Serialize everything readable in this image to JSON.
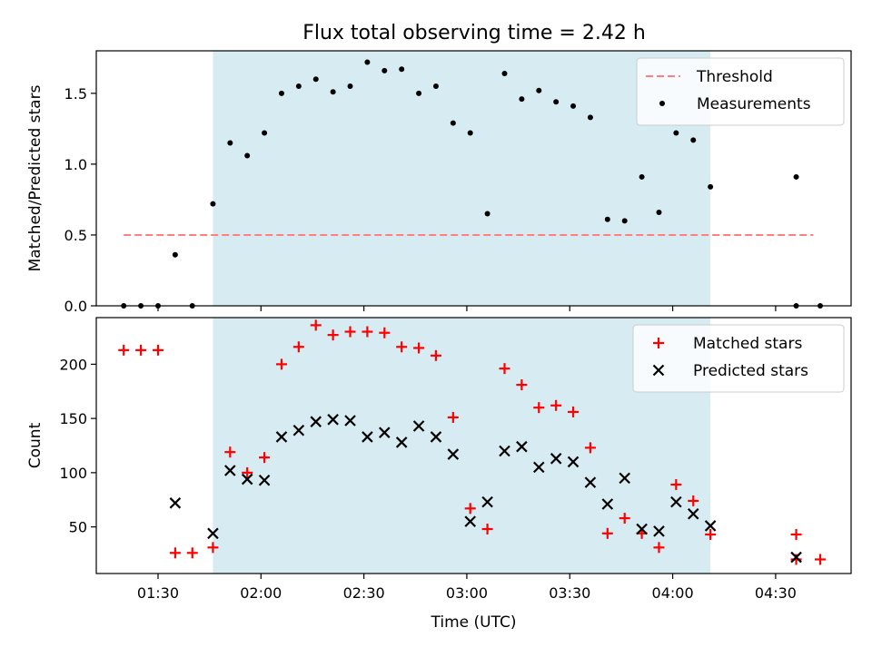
{
  "title": "Flux total observing time = 2.42 h",
  "colors": {
    "shade": "#add8e6",
    "threshold": "#ff7f7f",
    "measurement": "#000000",
    "matched": "#ff0000",
    "predicted": "#000000"
  },
  "chart_data": [
    {
      "type": "scatter",
      "panel": "top",
      "ylabel": "Matched/Predicted stars",
      "xlabel": "",
      "xlim": [
        "01:12",
        "04:52"
      ],
      "ylim": [
        0,
        1.8
      ],
      "yticks": [
        0.0,
        0.5,
        1.0,
        1.5
      ],
      "ytick_labels": [
        "0.0",
        "0.5",
        "1.0",
        "1.5"
      ],
      "shaded_span": [
        "01:46",
        "04:11"
      ],
      "legend": {
        "placement": "upper right",
        "entries": [
          "Threshold",
          "Measurements"
        ]
      },
      "threshold": {
        "name": "Threshold",
        "y": 0.5,
        "x_range": [
          "01:20",
          "04:41"
        ],
        "style": "dashed"
      },
      "series": [
        {
          "name": "Measurements",
          "marker": "dot",
          "points": [
            [
              "01:20",
              0.0
            ],
            [
              "01:25",
              0.0
            ],
            [
              "01:30",
              0.0
            ],
            [
              "01:35",
              0.36
            ],
            [
              "01:40",
              0.0
            ],
            [
              "01:46",
              0.72
            ],
            [
              "01:51",
              1.15
            ],
            [
              "01:56",
              1.06
            ],
            [
              "02:01",
              1.22
            ],
            [
              "02:06",
              1.5
            ],
            [
              "02:11",
              1.55
            ],
            [
              "02:16",
              1.6
            ],
            [
              "02:21",
              1.51
            ],
            [
              "02:26",
              1.55
            ],
            [
              "02:31",
              1.72
            ],
            [
              "02:36",
              1.66
            ],
            [
              "02:41",
              1.67
            ],
            [
              "02:46",
              1.5
            ],
            [
              "02:51",
              1.55
            ],
            [
              "02:56",
              1.29
            ],
            [
              "03:01",
              1.22
            ],
            [
              "03:06",
              0.65
            ],
            [
              "03:11",
              1.64
            ],
            [
              "03:16",
              1.46
            ],
            [
              "03:21",
              1.52
            ],
            [
              "03:26",
              1.44
            ],
            [
              "03:31",
              1.41
            ],
            [
              "03:36",
              1.33
            ],
            [
              "03:41",
              0.61
            ],
            [
              "03:46",
              0.6
            ],
            [
              "03:51",
              0.91
            ],
            [
              "03:56",
              0.66
            ],
            [
              "04:01",
              1.22
            ],
            [
              "04:06",
              1.17
            ],
            [
              "04:11",
              0.84
            ],
            [
              "04:36",
              0.0
            ],
            [
              "04:36",
              0.91
            ],
            [
              "04:43",
              0.0
            ]
          ]
        }
      ]
    },
    {
      "type": "scatter",
      "panel": "bottom",
      "ylabel": "Count",
      "xlabel": "Time (UTC)",
      "xlim": [
        "01:12",
        "04:52"
      ],
      "ylim": [
        7,
        243
      ],
      "yticks": [
        50,
        100,
        150,
        200
      ],
      "ytick_labels": [
        "50",
        "100",
        "150",
        "200"
      ],
      "xticks": [
        "01:30",
        "02:00",
        "02:30",
        "03:00",
        "03:30",
        "04:00",
        "04:30"
      ],
      "xtick_labels": [
        "01:30",
        "02:00",
        "02:30",
        "03:00",
        "03:30",
        "04:00",
        "04:30"
      ],
      "shaded_span": [
        "01:46",
        "04:11"
      ],
      "legend": {
        "placement": "upper right",
        "entries": [
          "Matched stars",
          "Predicted stars"
        ]
      },
      "series": [
        {
          "name": "Matched stars",
          "marker": "plus",
          "points": [
            [
              "01:20",
              213
            ],
            [
              "01:25",
              213
            ],
            [
              "01:30",
              213
            ],
            [
              "01:35",
              26
            ],
            [
              "01:40",
              26
            ],
            [
              "01:46",
              31
            ],
            [
              "01:51",
              119
            ],
            [
              "01:56",
              100
            ],
            [
              "02:01",
              114
            ],
            [
              "02:06",
              200
            ],
            [
              "02:11",
              216
            ],
            [
              "02:16",
              236
            ],
            [
              "02:21",
              227
            ],
            [
              "02:26",
              230
            ],
            [
              "02:31",
              230
            ],
            [
              "02:36",
              229
            ],
            [
              "02:41",
              216
            ],
            [
              "02:46",
              215
            ],
            [
              "02:51",
              208
            ],
            [
              "02:56",
              151
            ],
            [
              "03:01",
              67
            ],
            [
              "03:06",
              48
            ],
            [
              "03:11",
              196
            ],
            [
              "03:16",
              181
            ],
            [
              "03:21",
              160
            ],
            [
              "03:26",
              162
            ],
            [
              "03:31",
              156
            ],
            [
              "03:36",
              123
            ],
            [
              "03:41",
              44
            ],
            [
              "03:46",
              58
            ],
            [
              "03:51",
              44
            ],
            [
              "03:56",
              31
            ],
            [
              "04:01",
              89
            ],
            [
              "04:06",
              74
            ],
            [
              "04:11",
              43
            ],
            [
              "04:36",
              43
            ],
            [
              "04:36",
              20
            ],
            [
              "04:43",
              20
            ]
          ]
        },
        {
          "name": "Predicted stars",
          "marker": "x",
          "points": [
            [
              "01:35",
              72
            ],
            [
              "01:46",
              44
            ],
            [
              "01:51",
              102
            ],
            [
              "01:56",
              94
            ],
            [
              "02:01",
              93
            ],
            [
              "02:06",
              133
            ],
            [
              "02:11",
              139
            ],
            [
              "02:16",
              147
            ],
            [
              "02:21",
              149
            ],
            [
              "02:26",
              148
            ],
            [
              "02:31",
              133
            ],
            [
              "02:36",
              137
            ],
            [
              "02:41",
              128
            ],
            [
              "02:46",
              143
            ],
            [
              "02:51",
              133
            ],
            [
              "02:56",
              117
            ],
            [
              "03:01",
              55
            ],
            [
              "03:06",
              73
            ],
            [
              "03:11",
              120
            ],
            [
              "03:16",
              124
            ],
            [
              "03:21",
              105
            ],
            [
              "03:26",
              113
            ],
            [
              "03:31",
              110
            ],
            [
              "03:36",
              91
            ],
            [
              "03:41",
              71
            ],
            [
              "03:46",
              95
            ],
            [
              "03:51",
              48
            ],
            [
              "03:56",
              46
            ],
            [
              "04:01",
              73
            ],
            [
              "04:06",
              62
            ],
            [
              "04:11",
              51
            ],
            [
              "04:36",
              22
            ]
          ]
        }
      ]
    }
  ]
}
